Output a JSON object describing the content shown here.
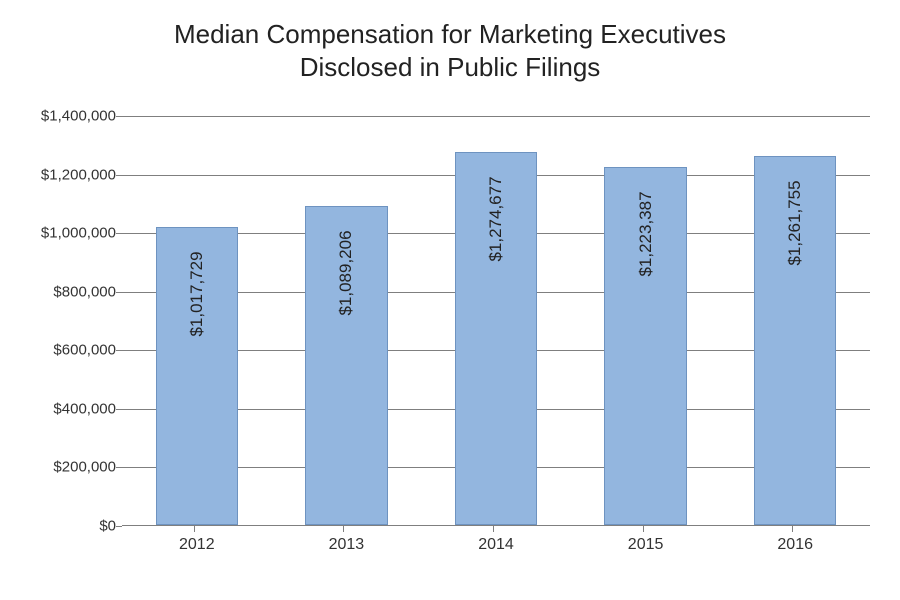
{
  "chart": {
    "type": "bar",
    "title_line1": "Median Compensation for Marketing Executives",
    "title_line2": "Disclosed in Public Filings",
    "title_fontsize": 26,
    "title_color": "#222222",
    "background_color": "#ffffff",
    "bar_fill_color": "#93b6df",
    "bar_border_color": "#6e93c0",
    "grid_color": "#7f7f7f",
    "axis_label_color": "#333333",
    "bar_label_color": "#222222",
    "bar_label_fontsize": 17,
    "axis_fontsize": 15,
    "x_fontsize": 16,
    "bar_width_ratio": 0.55,
    "ylim": [
      0,
      1400000
    ],
    "ytick_step": 200000,
    "yticks": [
      {
        "v": 0,
        "label": "$0"
      },
      {
        "v": 200000,
        "label": "$200,000"
      },
      {
        "v": 400000,
        "label": "$400,000"
      },
      {
        "v": 600000,
        "label": "$600,000"
      },
      {
        "v": 800000,
        "label": "$800,000"
      },
      {
        "v": 1000000,
        "label": "$1,000,000"
      },
      {
        "v": 1200000,
        "label": "$1,200,000"
      },
      {
        "v": 1400000,
        "label": "$1,400,000"
      }
    ],
    "categories": [
      "2012",
      "2013",
      "2014",
      "2015",
      "2016"
    ],
    "values": [
      1017729,
      1089206,
      1274677,
      1223387,
      1261755
    ],
    "value_labels": [
      "$1,017,729",
      "$1,089,206",
      "$1,274,677",
      "$1,223,387",
      "$1,261,755"
    ]
  }
}
